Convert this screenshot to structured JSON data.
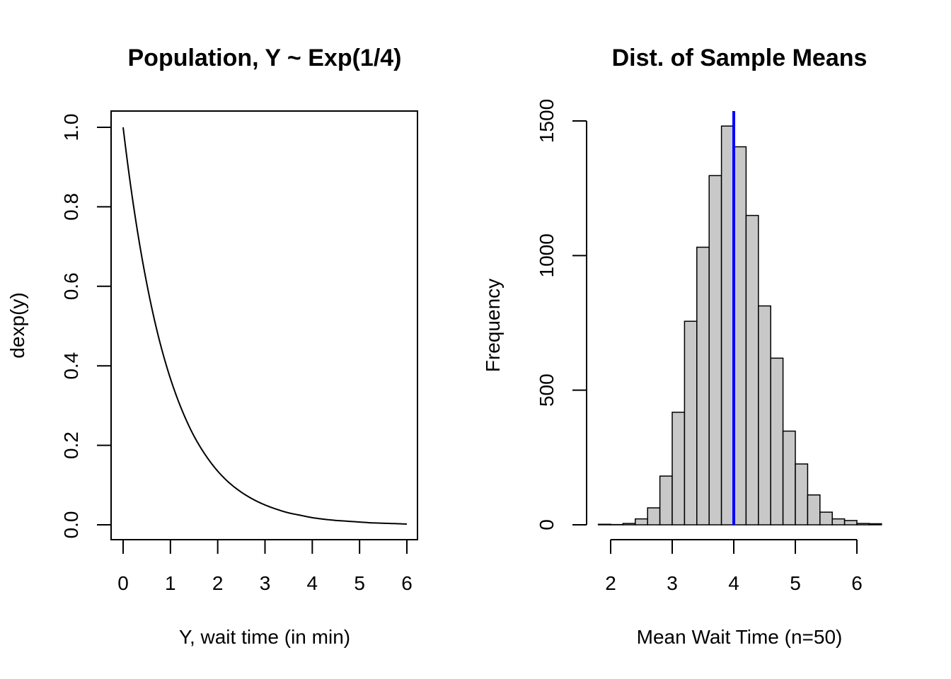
{
  "colors": {
    "axis": "#000000",
    "bar_fill": "#c8c8c8",
    "mean_line": "#0000ff",
    "curve": "#000000"
  },
  "chart_data": [
    {
      "type": "line",
      "title": "Population, Y ~ Exp(1/4)",
      "xlabel": "Y, wait time (in min)",
      "ylabel": "dexp(y)",
      "xlim": [
        0,
        6
      ],
      "ylim": [
        0,
        1
      ],
      "x_ticks": [
        0,
        1,
        2,
        3,
        4,
        5,
        6
      ],
      "y_ticks": [
        0.0,
        0.2,
        0.4,
        0.6,
        0.8,
        1.0
      ],
      "x_tick_labels": [
        "0",
        "1",
        "2",
        "3",
        "4",
        "5",
        "6"
      ],
      "y_tick_labels": [
        "0.0",
        "0.2",
        "0.4",
        "0.6",
        "0.8",
        "1.0"
      ],
      "series": [
        {
          "x": [
            0,
            0.25,
            0.5,
            0.75,
            1,
            1.25,
            1.5,
            1.75,
            2,
            2.25,
            2.5,
            2.75,
            3,
            3.25,
            3.5,
            3.75,
            4,
            4.25,
            4.5,
            4.75,
            5,
            5.25,
            5.5,
            5.75,
            6
          ],
          "y": [
            1.0,
            0.779,
            0.607,
            0.472,
            0.368,
            0.287,
            0.223,
            0.174,
            0.135,
            0.105,
            0.082,
            0.064,
            0.05,
            0.039,
            0.03,
            0.024,
            0.018,
            0.014,
            0.011,
            0.009,
            0.007,
            0.005,
            0.004,
            0.003,
            0.002
          ]
        }
      ],
      "grid": false
    },
    {
      "type": "bar",
      "title": "Dist. of Sample Means",
      "xlabel": "Mean Wait Time (n=50)",
      "ylabel": "Frequency",
      "xlim": [
        1.8,
        6.4
      ],
      "ylim": [
        0,
        1500
      ],
      "x_ticks": [
        2,
        3,
        4,
        5,
        6
      ],
      "y_ticks": [
        0,
        500,
        1000,
        1500
      ],
      "x_tick_labels": [
        "2",
        "3",
        "4",
        "5",
        "6"
      ],
      "y_tick_labels": [
        "0",
        "500",
        "1000",
        "1500"
      ],
      "bin_start": 1.8,
      "bin_width": 0.2,
      "values": [
        2,
        1,
        5,
        22,
        63,
        181,
        418,
        756,
        1031,
        1297,
        1481,
        1404,
        1149,
        813,
        619,
        348,
        226,
        111,
        47,
        22,
        16,
        5,
        4
      ],
      "mean_line_x": 4,
      "grid": false
    }
  ]
}
